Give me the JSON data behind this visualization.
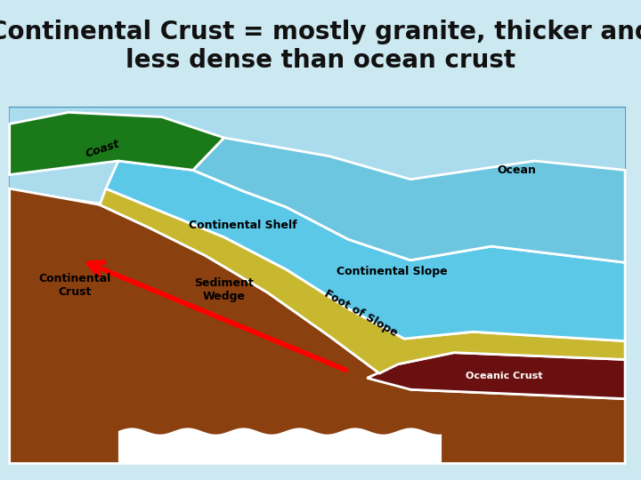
{
  "title_line1": "Continental Crust = mostly granite, thicker and",
  "title_line2": "less dense than ocean crust",
  "title_fontsize": 20,
  "title_fontweight": "bold",
  "bg_color": "#cce8f0",
  "colors": {
    "ocean_bg": "#aadcee",
    "ocean_dark": "#6dc6e0",
    "continental_shelf": "#5bc8e8",
    "continental_slope": "#5bc8e8",
    "foot_of_slope": "#5bc8e8",
    "sediment_wedge": "#c8b830",
    "continental_crust": "#8B4010",
    "oceanic_crust": "#6B1010",
    "coast": "#1a7a1a",
    "diagram_bg": "#ffffff",
    "border": "#4499bb"
  },
  "labels": {
    "ocean": "Ocean",
    "continental_shelf": "Continental Shelf",
    "continental_slope": "Continental Slope",
    "foot_of_slope": "Foot of Slope",
    "sediment_wedge": "Sediment\nWedge",
    "continental_crust": "Continental\nCrust",
    "oceanic_crust": "Oceanic Crust",
    "coast": "Coast"
  }
}
